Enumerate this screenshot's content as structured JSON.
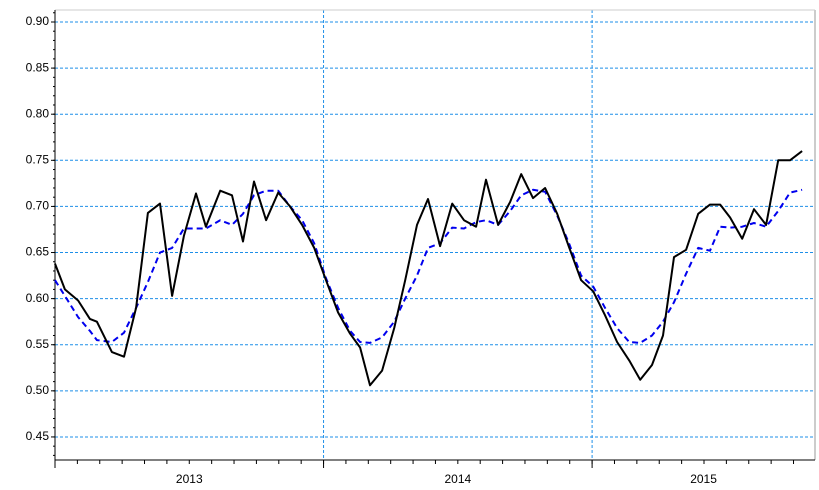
{
  "chart_data": {
    "type": "line",
    "x": [
      2013.0,
      2013.037,
      2013.086,
      2013.13,
      2013.156,
      2013.212,
      2013.257,
      2013.302,
      2013.346,
      2013.391,
      2013.436,
      2013.48,
      2013.525,
      2013.562,
      2013.615,
      2013.659,
      2013.7,
      2013.741,
      2013.786,
      2013.831,
      2013.875,
      2013.92,
      2013.965,
      2014.009,
      2014.054,
      2014.099,
      2014.136,
      2014.173,
      2014.218,
      2014.263,
      2014.304,
      2014.348,
      2014.389,
      2014.434,
      2014.479,
      2014.523,
      2014.568,
      2014.605,
      2014.65,
      2014.695,
      2014.736,
      2014.78,
      2014.825,
      2014.87,
      2014.914,
      2014.959,
      2015.004,
      2015.048,
      2015.093,
      2015.138,
      2015.179,
      2015.223,
      2015.264,
      2015.305,
      2015.35,
      2015.395,
      2015.439,
      2015.477,
      2015.514,
      2015.559,
      2015.603,
      2015.648,
      2015.693,
      2015.737,
      2015.782
    ],
    "series": [
      {
        "color": "#000000",
        "dash": "none",
        "values": [
          0.638,
          0.61,
          0.598,
          0.578,
          0.575,
          0.542,
          0.537,
          0.59,
          0.693,
          0.703,
          0.603,
          0.668,
          0.714,
          0.678,
          0.717,
          0.712,
          0.662,
          0.727,
          0.685,
          0.715,
          0.7,
          0.68,
          0.655,
          0.62,
          0.585,
          0.562,
          0.547,
          0.506,
          0.522,
          0.568,
          0.62,
          0.68,
          0.708,
          0.657,
          0.703,
          0.685,
          0.678,
          0.729,
          0.68,
          0.705,
          0.735,
          0.709,
          0.72,
          0.692,
          0.656,
          0.62,
          0.608,
          0.582,
          0.553,
          0.533,
          0.512,
          0.528,
          0.56,
          0.645,
          0.653,
          0.692,
          0.702,
          0.702,
          0.688,
          0.665,
          0.697,
          0.68,
          0.75,
          0.75,
          0.76
        ]
      },
      {
        "color": "#0000ee",
        "dash": "6,4",
        "values": [
          0.62,
          0.603,
          0.58,
          0.565,
          0.555,
          0.553,
          0.563,
          0.59,
          0.618,
          0.65,
          0.655,
          0.676,
          0.676,
          0.676,
          0.685,
          0.68,
          0.692,
          0.712,
          0.717,
          0.717,
          0.7,
          0.685,
          0.66,
          0.622,
          0.59,
          0.565,
          0.553,
          0.552,
          0.558,
          0.575,
          0.6,
          0.625,
          0.655,
          0.66,
          0.677,
          0.676,
          0.683,
          0.685,
          0.68,
          0.695,
          0.712,
          0.718,
          0.716,
          0.69,
          0.66,
          0.625,
          0.613,
          0.59,
          0.568,
          0.553,
          0.552,
          0.56,
          0.575,
          0.596,
          0.627,
          0.655,
          0.652,
          0.678,
          0.677,
          0.678,
          0.682,
          0.678,
          0.695,
          0.715,
          0.718
        ]
      }
    ],
    "xlim": [
      2013,
      2015.83
    ],
    "xticks": [
      2013,
      2014,
      2015
    ],
    "ylim": [
      0.425,
      0.913
    ],
    "yticks": [
      {
        "value": 0.45,
        "label": "0.45"
      },
      {
        "value": 0.5,
        "label": "0.50"
      },
      {
        "value": 0.55,
        "label": "0.55"
      },
      {
        "value": 0.6,
        "label": "0.60"
      },
      {
        "value": 0.65,
        "label": "0.65"
      },
      {
        "value": 0.7,
        "label": "0.70"
      },
      {
        "value": 0.75,
        "label": "0.75"
      },
      {
        "value": 0.8,
        "label": "0.80"
      },
      {
        "value": 0.85,
        "label": "0.85"
      },
      {
        "value": 0.9,
        "label": "0.90"
      }
    ],
    "grid": true,
    "grid_color": "#1e8fe8"
  }
}
